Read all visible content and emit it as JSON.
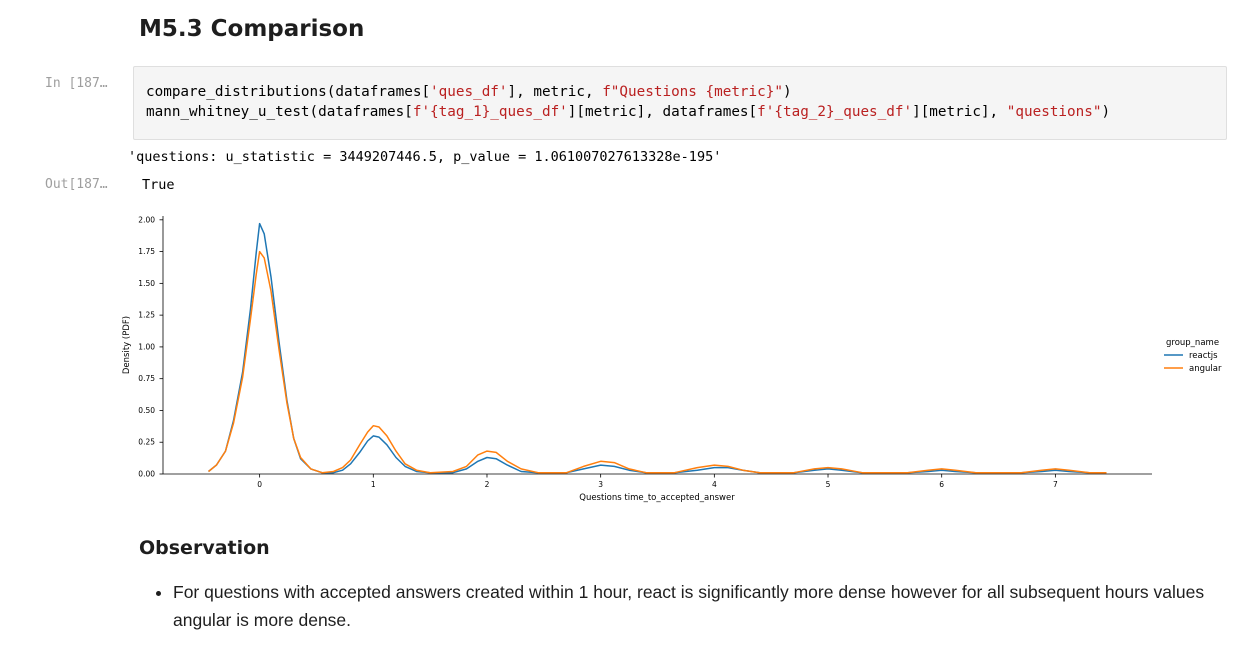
{
  "section": {
    "title": "M5.3 Comparison"
  },
  "input_cell": {
    "prompt": "In [187…",
    "line1": {
      "a": "compare_distributions(dataframes[",
      "b": "'ques_df'",
      "c": "], metric, ",
      "d": "f\"Questions {metric}\"",
      "e": ")"
    },
    "line2": {
      "a": "mann_whitney_u_test(dataframes[",
      "b": "f'{tag_1}_ques_df'",
      "c": "][metric], dataframes[",
      "d": "f'{tag_2}_ques_df'",
      "e": "][metric], ",
      "f": "\"questions\"",
      "g": ")"
    }
  },
  "stdout": "'questions: u_statistic = 3449207446.5, p_value = 1.061007027613328e-195'",
  "output_cell": {
    "prompt": "Out[187…",
    "value": "True"
  },
  "chart_data": {
    "type": "line",
    "title": "",
    "xlabel": "Questions time_to_accepted_answer",
    "ylabel": "Density (PDF)",
    "xlim": [
      -0.85,
      7.85
    ],
    "ylim": [
      0,
      2.03
    ],
    "xticks": [
      "0",
      "1",
      "2",
      "3",
      "4",
      "5",
      "6",
      "7"
    ],
    "yticks": [
      "0.00",
      "0.25",
      "0.50",
      "0.75",
      "1.00",
      "1.25",
      "1.50",
      "1.75",
      "2.00"
    ],
    "legend": {
      "title": "group_name",
      "placement": "right"
    },
    "series": [
      {
        "name": "reactjs",
        "color": "#1f77b4",
        "points": [
          [
            -0.45,
            0.02
          ],
          [
            -0.38,
            0.07
          ],
          [
            -0.3,
            0.18
          ],
          [
            -0.23,
            0.42
          ],
          [
            -0.15,
            0.8
          ],
          [
            -0.08,
            1.3
          ],
          [
            -0.03,
            1.74
          ],
          [
            0.0,
            1.97
          ],
          [
            0.04,
            1.89
          ],
          [
            0.1,
            1.55
          ],
          [
            0.17,
            1.04
          ],
          [
            0.24,
            0.58
          ],
          [
            0.3,
            0.28
          ],
          [
            0.36,
            0.12
          ],
          [
            0.45,
            0.04
          ],
          [
            0.55,
            0.01
          ],
          [
            0.65,
            0.01
          ],
          [
            0.73,
            0.03
          ],
          [
            0.8,
            0.08
          ],
          [
            0.88,
            0.17
          ],
          [
            0.95,
            0.26
          ],
          [
            1.0,
            0.3
          ],
          [
            1.05,
            0.29
          ],
          [
            1.12,
            0.23
          ],
          [
            1.2,
            0.13
          ],
          [
            1.28,
            0.06
          ],
          [
            1.38,
            0.02
          ],
          [
            1.5,
            0.01
          ],
          [
            1.7,
            0.01
          ],
          [
            1.82,
            0.04
          ],
          [
            1.92,
            0.1
          ],
          [
            2.0,
            0.13
          ],
          [
            2.08,
            0.12
          ],
          [
            2.18,
            0.07
          ],
          [
            2.3,
            0.02
          ],
          [
            2.45,
            0.01
          ],
          [
            2.7,
            0.01
          ],
          [
            2.85,
            0.04
          ],
          [
            3.0,
            0.07
          ],
          [
            3.12,
            0.06
          ],
          [
            3.25,
            0.03
          ],
          [
            3.4,
            0.01
          ],
          [
            3.65,
            0.01
          ],
          [
            3.85,
            0.03
          ],
          [
            4.0,
            0.05
          ],
          [
            4.12,
            0.05
          ],
          [
            4.25,
            0.03
          ],
          [
            4.4,
            0.01
          ],
          [
            4.7,
            0.01
          ],
          [
            4.88,
            0.03
          ],
          [
            5.0,
            0.04
          ],
          [
            5.12,
            0.03
          ],
          [
            5.3,
            0.01
          ],
          [
            5.7,
            0.01
          ],
          [
            5.88,
            0.02
          ],
          [
            6.0,
            0.03
          ],
          [
            6.12,
            0.02
          ],
          [
            6.3,
            0.01
          ],
          [
            6.7,
            0.01
          ],
          [
            6.88,
            0.02
          ],
          [
            7.0,
            0.03
          ],
          [
            7.12,
            0.02
          ],
          [
            7.3,
            0.01
          ],
          [
            7.45,
            0.01
          ]
        ]
      },
      {
        "name": "angular",
        "color": "#ff7f0e",
        "points": [
          [
            -0.45,
            0.02
          ],
          [
            -0.38,
            0.07
          ],
          [
            -0.3,
            0.18
          ],
          [
            -0.23,
            0.4
          ],
          [
            -0.15,
            0.76
          ],
          [
            -0.08,
            1.22
          ],
          [
            -0.03,
            1.57
          ],
          [
            0.0,
            1.75
          ],
          [
            0.04,
            1.7
          ],
          [
            0.1,
            1.44
          ],
          [
            0.17,
            0.98
          ],
          [
            0.24,
            0.56
          ],
          [
            0.3,
            0.28
          ],
          [
            0.36,
            0.13
          ],
          [
            0.45,
            0.04
          ],
          [
            0.55,
            0.01
          ],
          [
            0.65,
            0.02
          ],
          [
            0.73,
            0.05
          ],
          [
            0.8,
            0.11
          ],
          [
            0.88,
            0.23
          ],
          [
            0.95,
            0.33
          ],
          [
            1.0,
            0.38
          ],
          [
            1.05,
            0.37
          ],
          [
            1.12,
            0.3
          ],
          [
            1.2,
            0.18
          ],
          [
            1.28,
            0.08
          ],
          [
            1.38,
            0.03
          ],
          [
            1.5,
            0.01
          ],
          [
            1.7,
            0.02
          ],
          [
            1.82,
            0.06
          ],
          [
            1.92,
            0.15
          ],
          [
            2.0,
            0.18
          ],
          [
            2.08,
            0.17
          ],
          [
            2.18,
            0.1
          ],
          [
            2.3,
            0.04
          ],
          [
            2.45,
            0.01
          ],
          [
            2.7,
            0.01
          ],
          [
            2.85,
            0.06
          ],
          [
            3.0,
            0.1
          ],
          [
            3.12,
            0.09
          ],
          [
            3.25,
            0.04
          ],
          [
            3.4,
            0.01
          ],
          [
            3.65,
            0.01
          ],
          [
            3.85,
            0.05
          ],
          [
            4.0,
            0.07
          ],
          [
            4.12,
            0.06
          ],
          [
            4.25,
            0.03
          ],
          [
            4.4,
            0.01
          ],
          [
            4.7,
            0.01
          ],
          [
            4.88,
            0.04
          ],
          [
            5.0,
            0.05
          ],
          [
            5.12,
            0.04
          ],
          [
            5.3,
            0.01
          ],
          [
            5.7,
            0.01
          ],
          [
            5.88,
            0.03
          ],
          [
            6.0,
            0.04
          ],
          [
            6.12,
            0.03
          ],
          [
            6.3,
            0.01
          ],
          [
            6.7,
            0.01
          ],
          [
            6.88,
            0.03
          ],
          [
            7.0,
            0.04
          ],
          [
            7.12,
            0.03
          ],
          [
            7.3,
            0.01
          ],
          [
            7.45,
            0.01
          ]
        ]
      }
    ]
  },
  "observation": {
    "title": "Observation",
    "bullets": [
      "For questions with accepted answers created within 1 hour, react is significantly more dense however for all subsequent hours values angular is more dense."
    ]
  }
}
